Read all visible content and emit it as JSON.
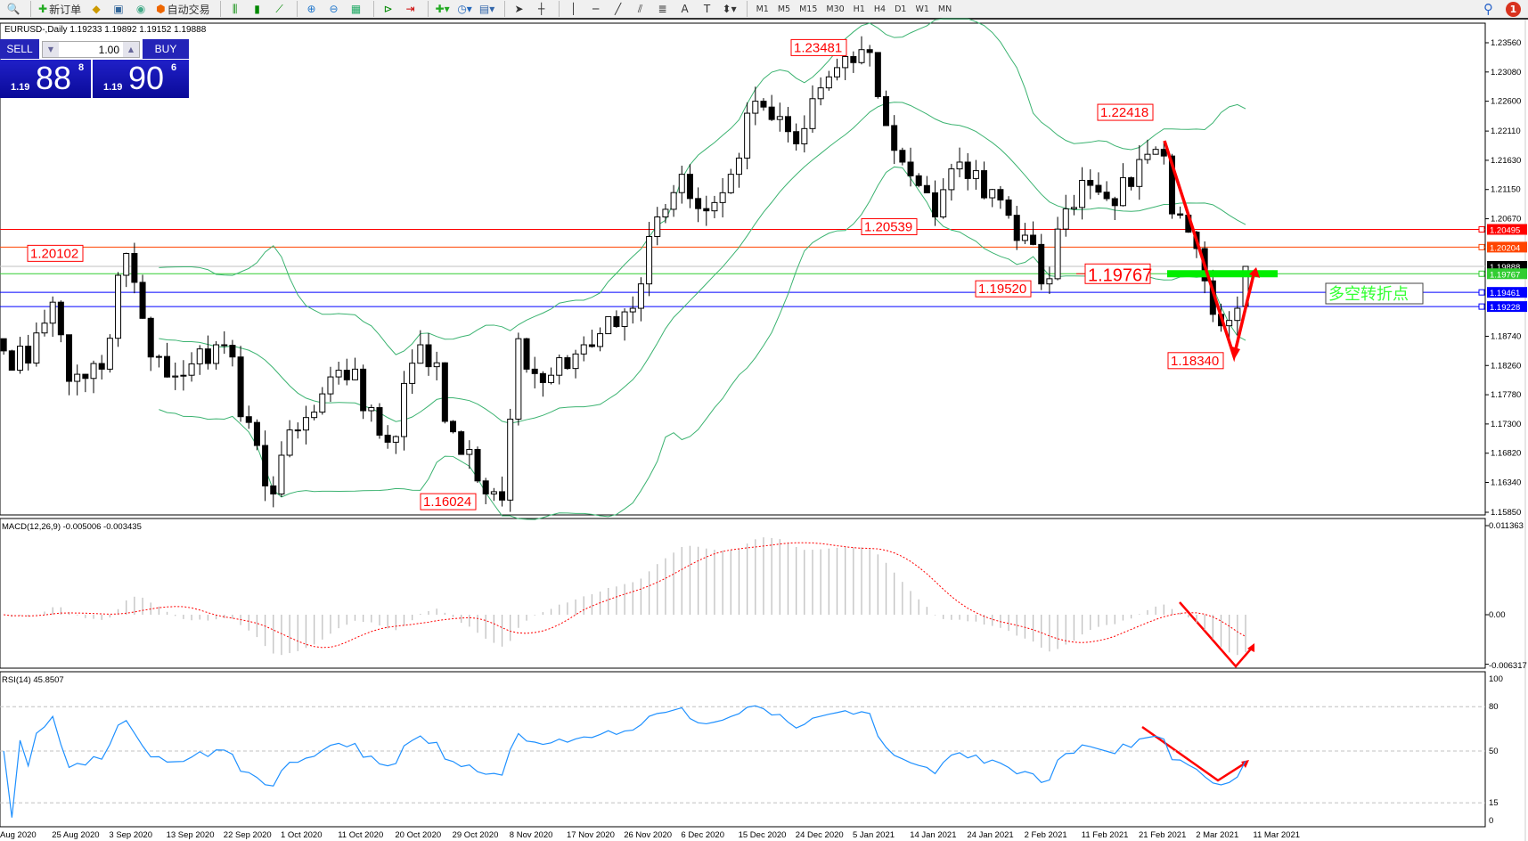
{
  "toolbar": {
    "new_order": "新订单",
    "auto_trading": "自动交易",
    "timeframes": [
      "M1",
      "M5",
      "M15",
      "M30",
      "H1",
      "H4",
      "D1",
      "W1",
      "MN"
    ],
    "notification_count": "1"
  },
  "chart_title": "EURUSD-,Daily  1.19233 1.19892 1.19152 1.19888",
  "trade_panel": {
    "sell_label": "SELL",
    "buy_label": "BUY",
    "lot": "1.00",
    "bid_small": "1.19",
    "bid_big": "88",
    "bid_tiny": "8",
    "ask_small": "1.19",
    "ask_big": "90",
    "ask_tiny": "6"
  },
  "chart_data": {
    "type": "candlestick",
    "symbol": "EURUSD-",
    "timeframe": "Daily",
    "last_bar": {
      "open": 1.19233,
      "high": 1.19892,
      "low": 1.19152,
      "close": 1.19888
    },
    "pivots": [
      [
        "2020-08-11",
        1.185
      ],
      [
        "2020-08-14",
        1.183
      ],
      [
        "2020-08-19",
        1.193
      ],
      [
        "2020-08-21",
        1.18
      ],
      [
        "2020-08-27",
        1.182
      ],
      [
        "2020-09-01",
        1.201
      ],
      [
        "2020-09-04",
        1.184
      ],
      [
        "2020-09-10",
        1.181
      ],
      [
        "2020-09-16",
        1.186
      ],
      [
        "2020-09-18",
        1.184
      ],
      [
        "2020-09-25",
        1.1615
      ],
      [
        "2020-09-30",
        1.172
      ],
      [
        "2020-10-09",
        1.182
      ],
      [
        "2020-10-15",
        1.17
      ],
      [
        "2020-10-21",
        1.186
      ],
      [
        "2020-10-28",
        1.168
      ],
      [
        "2020-11-04",
        1.1605
      ],
      [
        "2020-11-06",
        1.187
      ],
      [
        "2020-11-09",
        1.182
      ],
      [
        "2020-11-12",
        1.181
      ],
      [
        "2020-11-18",
        1.186
      ],
      [
        "2020-11-24",
        1.189
      ],
      [
        "2020-11-27",
        1.196
      ],
      [
        "2020-12-01",
        1.207
      ],
      [
        "2020-12-04",
        1.214
      ],
      [
        "2020-12-09",
        1.208
      ],
      [
        "2020-12-14",
        1.214
      ],
      [
        "2020-12-17",
        1.226
      ],
      [
        "2020-12-21",
        1.223
      ],
      [
        "2020-12-24",
        1.219
      ],
      [
        "2020-12-30",
        1.23
      ],
      [
        "2021-01-06",
        1.234
      ],
      [
        "2021-01-08",
        1.222
      ],
      [
        "2021-01-12",
        1.216
      ],
      [
        "2021-01-18",
        1.207
      ],
      [
        "2021-01-21",
        1.216
      ],
      [
        "2021-01-27",
        1.2115
      ],
      [
        "2021-02-02",
        1.204
      ],
      [
        "2021-02-04",
        1.196
      ],
      [
        "2021-02-08",
        1.205
      ],
      [
        "2021-02-11",
        1.213
      ],
      [
        "2021-02-16",
        1.21
      ],
      [
        "2021-02-19",
        1.212
      ],
      [
        "2021-02-25",
        1.217
      ],
      [
        "2021-02-26",
        1.2075
      ],
      [
        "2021-03-02",
        1.2045
      ],
      [
        "2021-03-04",
        1.1965
      ],
      [
        "2021-03-05",
        1.191
      ],
      [
        "2021-03-09",
        1.19
      ],
      [
        "2021-03-10",
        1.192
      ],
      [
        "2021-03-11",
        1.19888
      ]
    ],
    "price_axis": {
      "ticks": [
        "1.23560",
        "1.23080",
        "1.22600",
        "1.22110",
        "1.21630",
        "1.21150",
        "1.20670",
        "1.18740",
        "1.18260",
        "1.17780",
        "1.17300",
        "1.16820",
        "1.16340",
        "1.15850"
      ],
      "range": [
        1.1585,
        1.2356
      ]
    },
    "levels": [
      {
        "price": "1.20495",
        "color": "#ff0000"
      },
      {
        "price": "1.20204",
        "color": "#ff4500"
      },
      {
        "price": "1.19888",
        "color": "#000000",
        "line": "#c0c0c0"
      },
      {
        "price": "1.19767",
        "color": "#32cd32"
      },
      {
        "price": "1.19461",
        "color": "#0000ff"
      },
      {
        "price": "1.19228",
        "color": "#0000ff"
      }
    ],
    "annotations": [
      "1.23481",
      "1.22418",
      "1.20102",
      "1.20539",
      "1.19520",
      "1.16024",
      "1.18340"
    ],
    "annotation_big": "1.19767",
    "turning_point_label": "多空转折点",
    "indicator_bollinger": {
      "period": 20,
      "deviation": 2,
      "color": "#3cb371"
    },
    "macd": {
      "label": "MACD(12,26,9) -0.005006 -0.003435",
      "ticks": [
        "0.011363",
        "0.00",
        "-0.006317"
      ],
      "range": [
        -0.006317,
        0.011363
      ]
    },
    "rsi": {
      "label": "RSI(14) 45.8507",
      "ticks": [
        "100",
        "80",
        "50",
        "15",
        "0"
      ],
      "levels": [
        80,
        50,
        15
      ],
      "color": "#1e90ff"
    },
    "date_labels": [
      "Aug 2020",
      "25 Aug 2020",
      "3 Sep 2020",
      "13 Sep 2020",
      "22 Sep 2020",
      "1 Oct 2020",
      "11 Oct 2020",
      "20 Oct 2020",
      "29 Oct 2020",
      "8 Nov 2020",
      "17 Nov 2020",
      "26 Nov 2020",
      "6 Dec 2020",
      "15 Dec 2020",
      "24 Dec 2020",
      "5 Jan 2021",
      "14 Jan 2021",
      "24 Jan 2021",
      "2 Feb 2021",
      "11 Feb 2021",
      "21 Feb 2021",
      "2 Mar 2021",
      "11 Mar 2021"
    ],
    "colors": {
      "arrow": "#ff0000",
      "green_bar": "#00ee00",
      "bull_body": "#ffffff",
      "bear_body": "#000000"
    }
  }
}
